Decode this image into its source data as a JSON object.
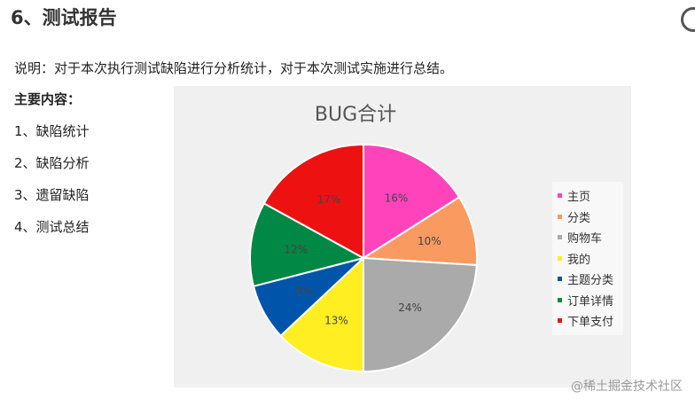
{
  "header": {
    "title": "6、测试报告"
  },
  "description": "说明：对于本次执行测试缺陷进行分析统计，对于本次测试实施进行总结。",
  "main_heading": "主要内容：",
  "items": [
    "1、缺陷统计",
    "2、缺陷分析",
    "3、遗留缺陷",
    "4、测试总结"
  ],
  "watermark": "@稀土掘金技术社区",
  "chart_data": {
    "type": "pie",
    "title": "BUG合计",
    "categories": [
      "主页",
      "分类",
      "购物车",
      "我的",
      "主题分类",
      "订单详情",
      "下单支付"
    ],
    "values": [
      16,
      10,
      24,
      13,
      8,
      12,
      17
    ],
    "labels": [
      "16%",
      "10%",
      "24%",
      "13%",
      "8%",
      "12%",
      "17%"
    ],
    "colors": [
      "#ff44bb",
      "#f99a60",
      "#aaaaaa",
      "#ffee22",
      "#0055aa",
      "#008844",
      "#ee1111"
    ],
    "legend": "right",
    "start": "12 o'clock, clockwise"
  }
}
